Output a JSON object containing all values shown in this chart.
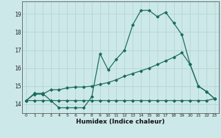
{
  "xlabel": "Humidex (Indice chaleur)",
  "xlim": [
    -0.5,
    23.5
  ],
  "ylim": [
    13.5,
    19.7
  ],
  "yticks": [
    14,
    15,
    16,
    17,
    18,
    19
  ],
  "xticks": [
    0,
    1,
    2,
    3,
    4,
    5,
    6,
    7,
    8,
    9,
    10,
    11,
    12,
    13,
    14,
    15,
    16,
    17,
    18,
    19,
    20,
    21,
    22,
    23
  ],
  "bg_color": "#cce8e8",
  "grid_color": "#b8d8d0",
  "line_color": "#1a6b5a",
  "series_upper_x": [
    0,
    1,
    2,
    3,
    4,
    5,
    6,
    7,
    8,
    9,
    10,
    11,
    12,
    13,
    14,
    15,
    16,
    17,
    18,
    19,
    20,
    21,
    22,
    23
  ],
  "series_upper_y": [
    14.2,
    14.6,
    14.6,
    14.2,
    13.8,
    13.8,
    13.8,
    13.8,
    14.4,
    16.8,
    15.9,
    16.5,
    17.0,
    18.4,
    19.2,
    19.2,
    18.85,
    19.1,
    18.5,
    17.85,
    16.2,
    15.0,
    14.7,
    14.3
  ],
  "series_mid_x": [
    0,
    1,
    2,
    3,
    4,
    5,
    6,
    7,
    8,
    9,
    10,
    11,
    12,
    13,
    14,
    15,
    16,
    17,
    18,
    19,
    20,
    21,
    22,
    23
  ],
  "series_mid_y": [
    14.2,
    14.55,
    14.55,
    14.8,
    14.8,
    14.9,
    14.95,
    14.95,
    15.0,
    15.1,
    15.2,
    15.35,
    15.55,
    15.7,
    15.85,
    16.0,
    16.2,
    16.4,
    16.6,
    16.85,
    16.2,
    15.0,
    14.7,
    14.3
  ],
  "series_low_x": [
    0,
    1,
    2,
    3,
    4,
    5,
    6,
    7,
    8,
    9,
    10,
    11,
    12,
    13,
    14,
    15,
    16,
    17,
    18,
    19,
    20,
    21,
    22,
    23
  ],
  "series_low_y": [
    14.2,
    14.2,
    14.2,
    14.2,
    14.2,
    14.2,
    14.2,
    14.2,
    14.2,
    14.2,
    14.2,
    14.2,
    14.2,
    14.2,
    14.2,
    14.2,
    14.2,
    14.2,
    14.2,
    14.2,
    14.2,
    14.2,
    14.2,
    14.3
  ]
}
